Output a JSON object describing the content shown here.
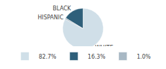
{
  "chart_data": {
    "type": "pie",
    "categories": [
      "WHITE",
      "BLACK",
      "HISPANIC"
    ],
    "values": [
      82.7,
      16.3,
      1.0
    ],
    "value_labels": [
      "82.7%",
      "16.3%",
      "1.0%"
    ],
    "colors": [
      "#d0dfe8",
      "#2e5f7a",
      "#a8b8c4"
    ],
    "legend": "bottom"
  }
}
